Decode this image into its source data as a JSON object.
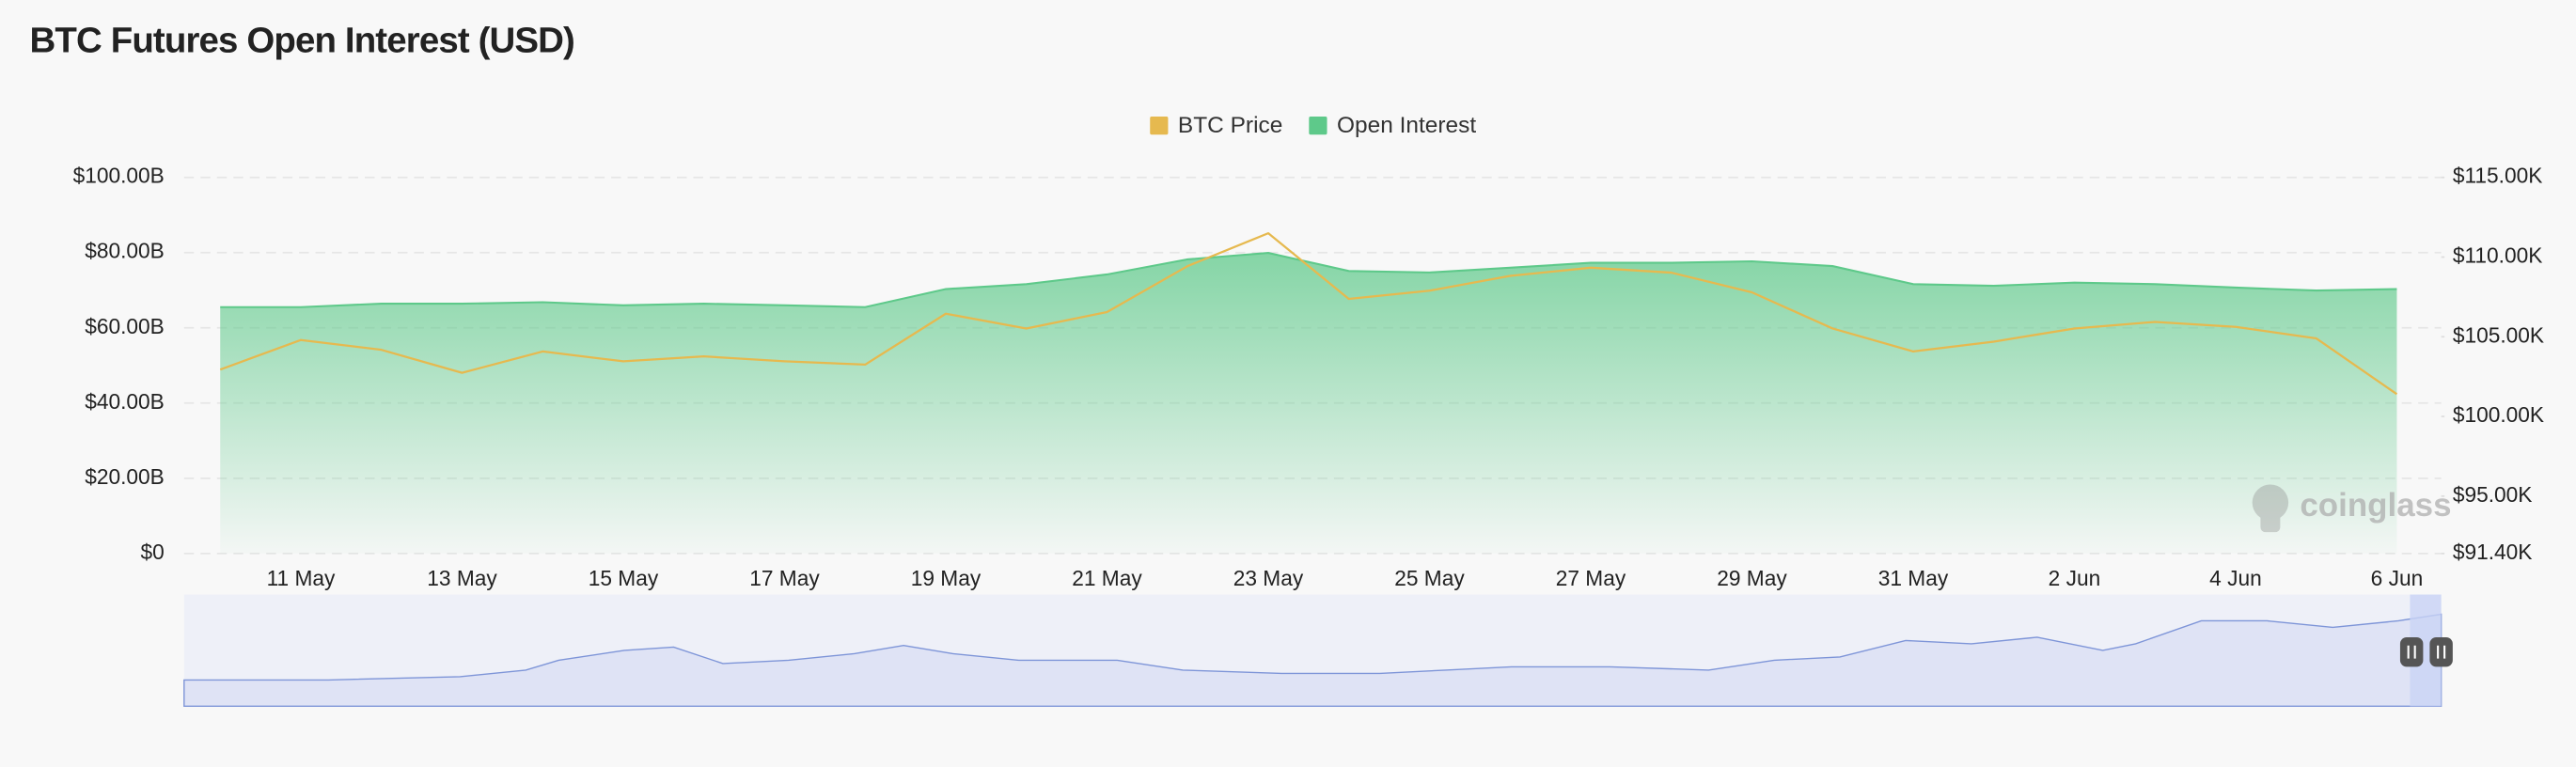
{
  "chart_data": {
    "type": "line",
    "title": "BTC Futures Open Interest (USD)",
    "watermark": "coinglass",
    "categories": [
      null,
      "11 May",
      null,
      "13 May",
      null,
      "15 May",
      null,
      "17 May",
      null,
      "19 May",
      null,
      "21 May",
      null,
      "23 May",
      null,
      "25 May",
      null,
      "27 May",
      null,
      "29 May",
      null,
      "31 May",
      null,
      "2 Jun",
      null,
      "4 Jun",
      null,
      "6 Jun"
    ],
    "series": [
      {
        "name": "BTC Price",
        "color": "#e6b94f",
        "axis": "y2",
        "values": [
          102940,
          104800,
          104180,
          102740,
          104080,
          103460,
          103770,
          103460,
          103250,
          106450,
          105520,
          106550,
          109440,
          111500,
          107370,
          107890,
          108820,
          109330,
          109020,
          107790,
          105520,
          104080,
          104690,
          105520,
          105930,
          105620,
          104900,
          101400
        ]
      },
      {
        "name": "Open Interest",
        "color": "#5ec98a",
        "values": [
          65.5,
          65.5,
          66.4,
          66.4,
          66.8,
          66,
          66.4,
          66,
          65.5,
          70.3,
          71.6,
          74.2,
          78.2,
          79.9,
          75.1,
          74.7,
          76,
          77.3,
          77.3,
          77.7,
          76.4,
          71.6,
          71.2,
          72,
          71.6,
          70.7,
          69.9,
          70.3
        ]
      }
    ],
    "ylim": [
      0,
      100
    ],
    "yticks": [
      {
        "value": 0,
        "label": "$0"
      },
      {
        "value": 20,
        "label": "$20.00B"
      },
      {
        "value": 40,
        "label": "$40.00B"
      },
      {
        "value": 60,
        "label": "$60.00B"
      },
      {
        "value": 80,
        "label": "$80.00B"
      },
      {
        "value": 100,
        "label": "$100.00B"
      }
    ],
    "y2lim": [
      91400,
      115000
    ],
    "y2ticks": [
      {
        "value": 91400,
        "label": "$91.40K"
      },
      {
        "value": 95000,
        "label": "$95.00K"
      },
      {
        "value": 100000,
        "label": "$100.00K"
      },
      {
        "value": 105000,
        "label": "$105.00K"
      },
      {
        "value": 110000,
        "label": "$110.00K"
      },
      {
        "value": 115000,
        "label": "$115.00K"
      }
    ],
    "grid": true,
    "legend": "top"
  }
}
